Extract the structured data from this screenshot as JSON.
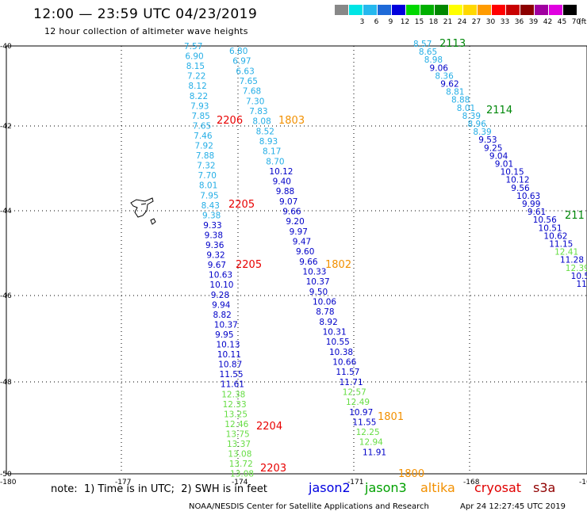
{
  "header": {
    "title": "12:00 — 23:59 UTC 04/23/2019",
    "subtitle": "12 hour collection of altimeter wave heights"
  },
  "legend": {
    "unit": "(ft)",
    "items": [
      {
        "label": "",
        "color": "#888888"
      },
      {
        "label": "3",
        "color": "#00e5e5"
      },
      {
        "label": "6",
        "color": "#25b8ee"
      },
      {
        "label": "9",
        "color": "#1e6ad8"
      },
      {
        "label": "12",
        "color": "#0000dc"
      },
      {
        "label": "15",
        "color": "#00d800"
      },
      {
        "label": "18",
        "color": "#00b000"
      },
      {
        "label": "21",
        "color": "#008800"
      },
      {
        "label": "24",
        "color": "#ffff00"
      },
      {
        "label": "27",
        "color": "#ffd800"
      },
      {
        "label": "30",
        "color": "#ff9b00"
      },
      {
        "label": "33",
        "color": "#ff0000"
      },
      {
        "label": "36",
        "color": "#c80000"
      },
      {
        "label": "39",
        "color": "#8c0000"
      },
      {
        "label": "42",
        "color": "#a000a0"
      },
      {
        "label": "45",
        "color": "#e000e0"
      },
      {
        "label": "70",
        "color": "#000000"
      }
    ]
  },
  "map": {
    "lat_labels": [
      "-40",
      "-42",
      "-44",
      "-46",
      "-48",
      "-50"
    ],
    "lon_labels": [
      "-180",
      "-177",
      "-174",
      "-171",
      "-168",
      "-16"
    ]
  },
  "colors": {
    "lt": "#25aee6",
    "dk": "#0000c8",
    "gr": "#66dd44",
    "tr": "#e80000",
    "to": "#f29000",
    "tg": "#00880a"
  },
  "tracks": {
    "A": [
      "7.57",
      "6.90",
      "8.15",
      "7.22",
      "8.12",
      "8.22",
      "7.93",
      "7.85",
      "7.65",
      "7.46",
      "7.92",
      "7.88",
      "7.32",
      "7.70",
      "8.01",
      "7.95",
      "8.43",
      "9.38",
      "9.33",
      "9.38",
      "9.36",
      "9.32",
      "9.67",
      "10.63",
      "10.10",
      "9.28",
      "9.94",
      "8.82",
      "10.37",
      "9.95",
      "10.13",
      "10.11",
      "10.87",
      "11.55",
      "11.61",
      "12.38",
      "12.33",
      "13.25",
      "12.46",
      "13.75",
      "13.37",
      "13.08",
      "13.72",
      "13.08"
    ],
    "A_color": [
      "lt",
      "lt",
      "lt",
      "lt",
      "lt",
      "lt",
      "lt",
      "lt",
      "lt",
      "lt",
      "lt",
      "lt",
      "lt",
      "lt",
      "lt",
      "lt",
      "lt",
      "lt",
      "dk",
      "dk",
      "dk",
      "dk",
      "dk",
      "dk",
      "dk",
      "dk",
      "dk",
      "dk",
      "dk",
      "dk",
      "dk",
      "dk",
      "dk",
      "dk",
      "dk",
      "gr",
      "gr",
      "gr",
      "gr",
      "gr",
      "gr",
      "gr",
      "gr",
      "gr"
    ],
    "B": [
      "6.80",
      "6.97",
      "6.63",
      "7.65",
      "7.68",
      "7.30",
      "7.83",
      "8.08",
      "8.52",
      "8.93",
      "8.17",
      "8.70",
      "10.12",
      "9.40",
      "9.88",
      "9.07",
      "9.66",
      "9.20",
      "9.97",
      "9.47",
      "9.60",
      "9.66",
      "10.33",
      "10.37",
      "9.50",
      "10.06",
      "8.78",
      "8.92",
      "10.31",
      "10.55",
      "10.38",
      "10.66",
      "11.57",
      "11.71",
      "12.57",
      "12.49",
      "10.97",
      "11.55",
      "12.25",
      "12.94",
      "11.91"
    ],
    "B_color": [
      "lt",
      "lt",
      "lt",
      "lt",
      "lt",
      "lt",
      "lt",
      "lt",
      "lt",
      "lt",
      "lt",
      "lt",
      "dk",
      "dk",
      "dk",
      "dk",
      "dk",
      "dk",
      "dk",
      "dk",
      "dk",
      "dk",
      "dk",
      "dk",
      "dk",
      "dk",
      "dk",
      "dk",
      "dk",
      "dk",
      "dk",
      "dk",
      "dk",
      "dk",
      "gr",
      "gr",
      "dk",
      "dk",
      "gr",
      "gr",
      "dk"
    ],
    "C": [
      "8.57",
      "8.65",
      "8.98",
      "9.06",
      "8.36",
      "9.62",
      "8.81",
      "8.88",
      "8.01",
      "8.39",
      "8.96",
      "8.39",
      "9.53",
      "9.25",
      "9.04",
      "9.01",
      "10.15",
      "10.12",
      "9.56",
      "10.63",
      "9.99",
      "9.61",
      "10.56",
      "10.51",
      "10.62",
      "11.15",
      "12.41",
      "11.28",
      "12.39",
      "10.5",
      "11"
    ],
    "C_color": [
      "lt",
      "lt",
      "lt",
      "dk",
      "lt",
      "dk",
      "lt",
      "lt",
      "lt",
      "lt",
      "lt",
      "lt",
      "dk",
      "dk",
      "dk",
      "dk",
      "dk",
      "dk",
      "dk",
      "dk",
      "dk",
      "dk",
      "dk",
      "dk",
      "dk",
      "dk",
      "gr",
      "dk",
      "gr",
      "dk",
      "dk"
    ]
  },
  "time_labels": [
    {
      "text": "2206",
      "color": "tr"
    },
    {
      "text": "1803",
      "color": "to"
    },
    {
      "text": "2205",
      "color": "tr"
    },
    {
      "text": "2205",
      "color": "tr"
    },
    {
      "text": "1802",
      "color": "to"
    },
    {
      "text": "2204",
      "color": "tr"
    },
    {
      "text": "1801",
      "color": "to"
    },
    {
      "text": "2203",
      "color": "tr"
    },
    {
      "text": "1800",
      "color": "to"
    },
    {
      "text": "2113",
      "color": "tg"
    },
    {
      "text": "2114",
      "color": "tg"
    },
    {
      "text": "211",
      "color": "tg"
    }
  ],
  "footer": {
    "note": "note:  1) Time is in UTC;  2) SWH is in feet",
    "satellites": [
      {
        "name": "jason2",
        "color": "#0000e0"
      },
      {
        "name": "jason3",
        "color": "#00a000"
      },
      {
        "name": "altika",
        "color": "#f29000"
      },
      {
        "name": "cryosat",
        "color": "#e00000"
      },
      {
        "name": "s3a",
        "color": "#900000"
      }
    ],
    "credit": "NOAA/NESDIS Center for Satellite Applications and Research",
    "timestamp": "Apr 24 12:27:45 UTC 2019"
  }
}
